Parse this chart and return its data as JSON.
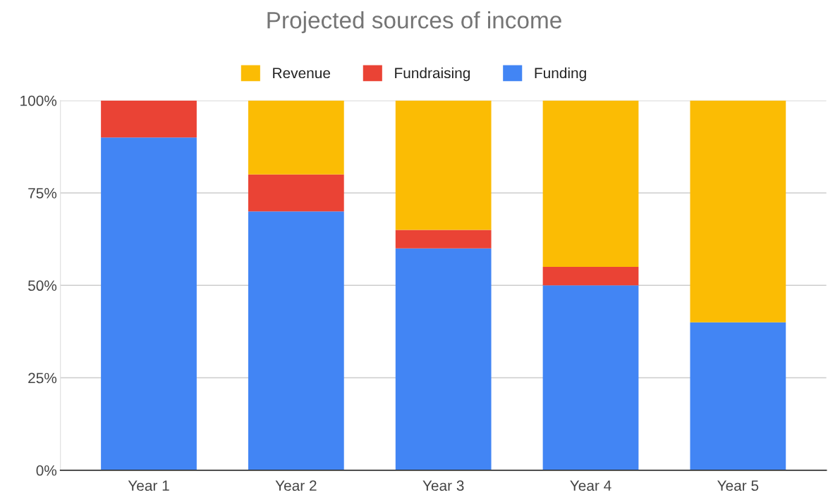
{
  "chart_data": {
    "type": "bar",
    "title": "Projected sources of income",
    "categories": [
      "Year 1",
      "Year 2",
      "Year 3",
      "Year 4",
      "Year 5"
    ],
    "stacked": true,
    "series": [
      {
        "name": "Funding",
        "color": "#4285f4",
        "values": [
          90,
          70,
          60,
          50,
          40
        ]
      },
      {
        "name": "Fundraising",
        "color": "#ea4335",
        "values": [
          10,
          10,
          5,
          5,
          0
        ]
      },
      {
        "name": "Revenue",
        "color": "#fbbc04",
        "values": [
          0,
          20,
          35,
          45,
          60
        ]
      }
    ],
    "ylim": [
      0,
      100
    ],
    "yticks": [
      {
        "value": 0,
        "label": "0%"
      },
      {
        "value": 25,
        "label": "25%"
      },
      {
        "value": 50,
        "label": "50%"
      },
      {
        "value": 75,
        "label": "75%"
      },
      {
        "value": 100,
        "label": "100%"
      }
    ],
    "grid": "y",
    "legend": "top"
  }
}
